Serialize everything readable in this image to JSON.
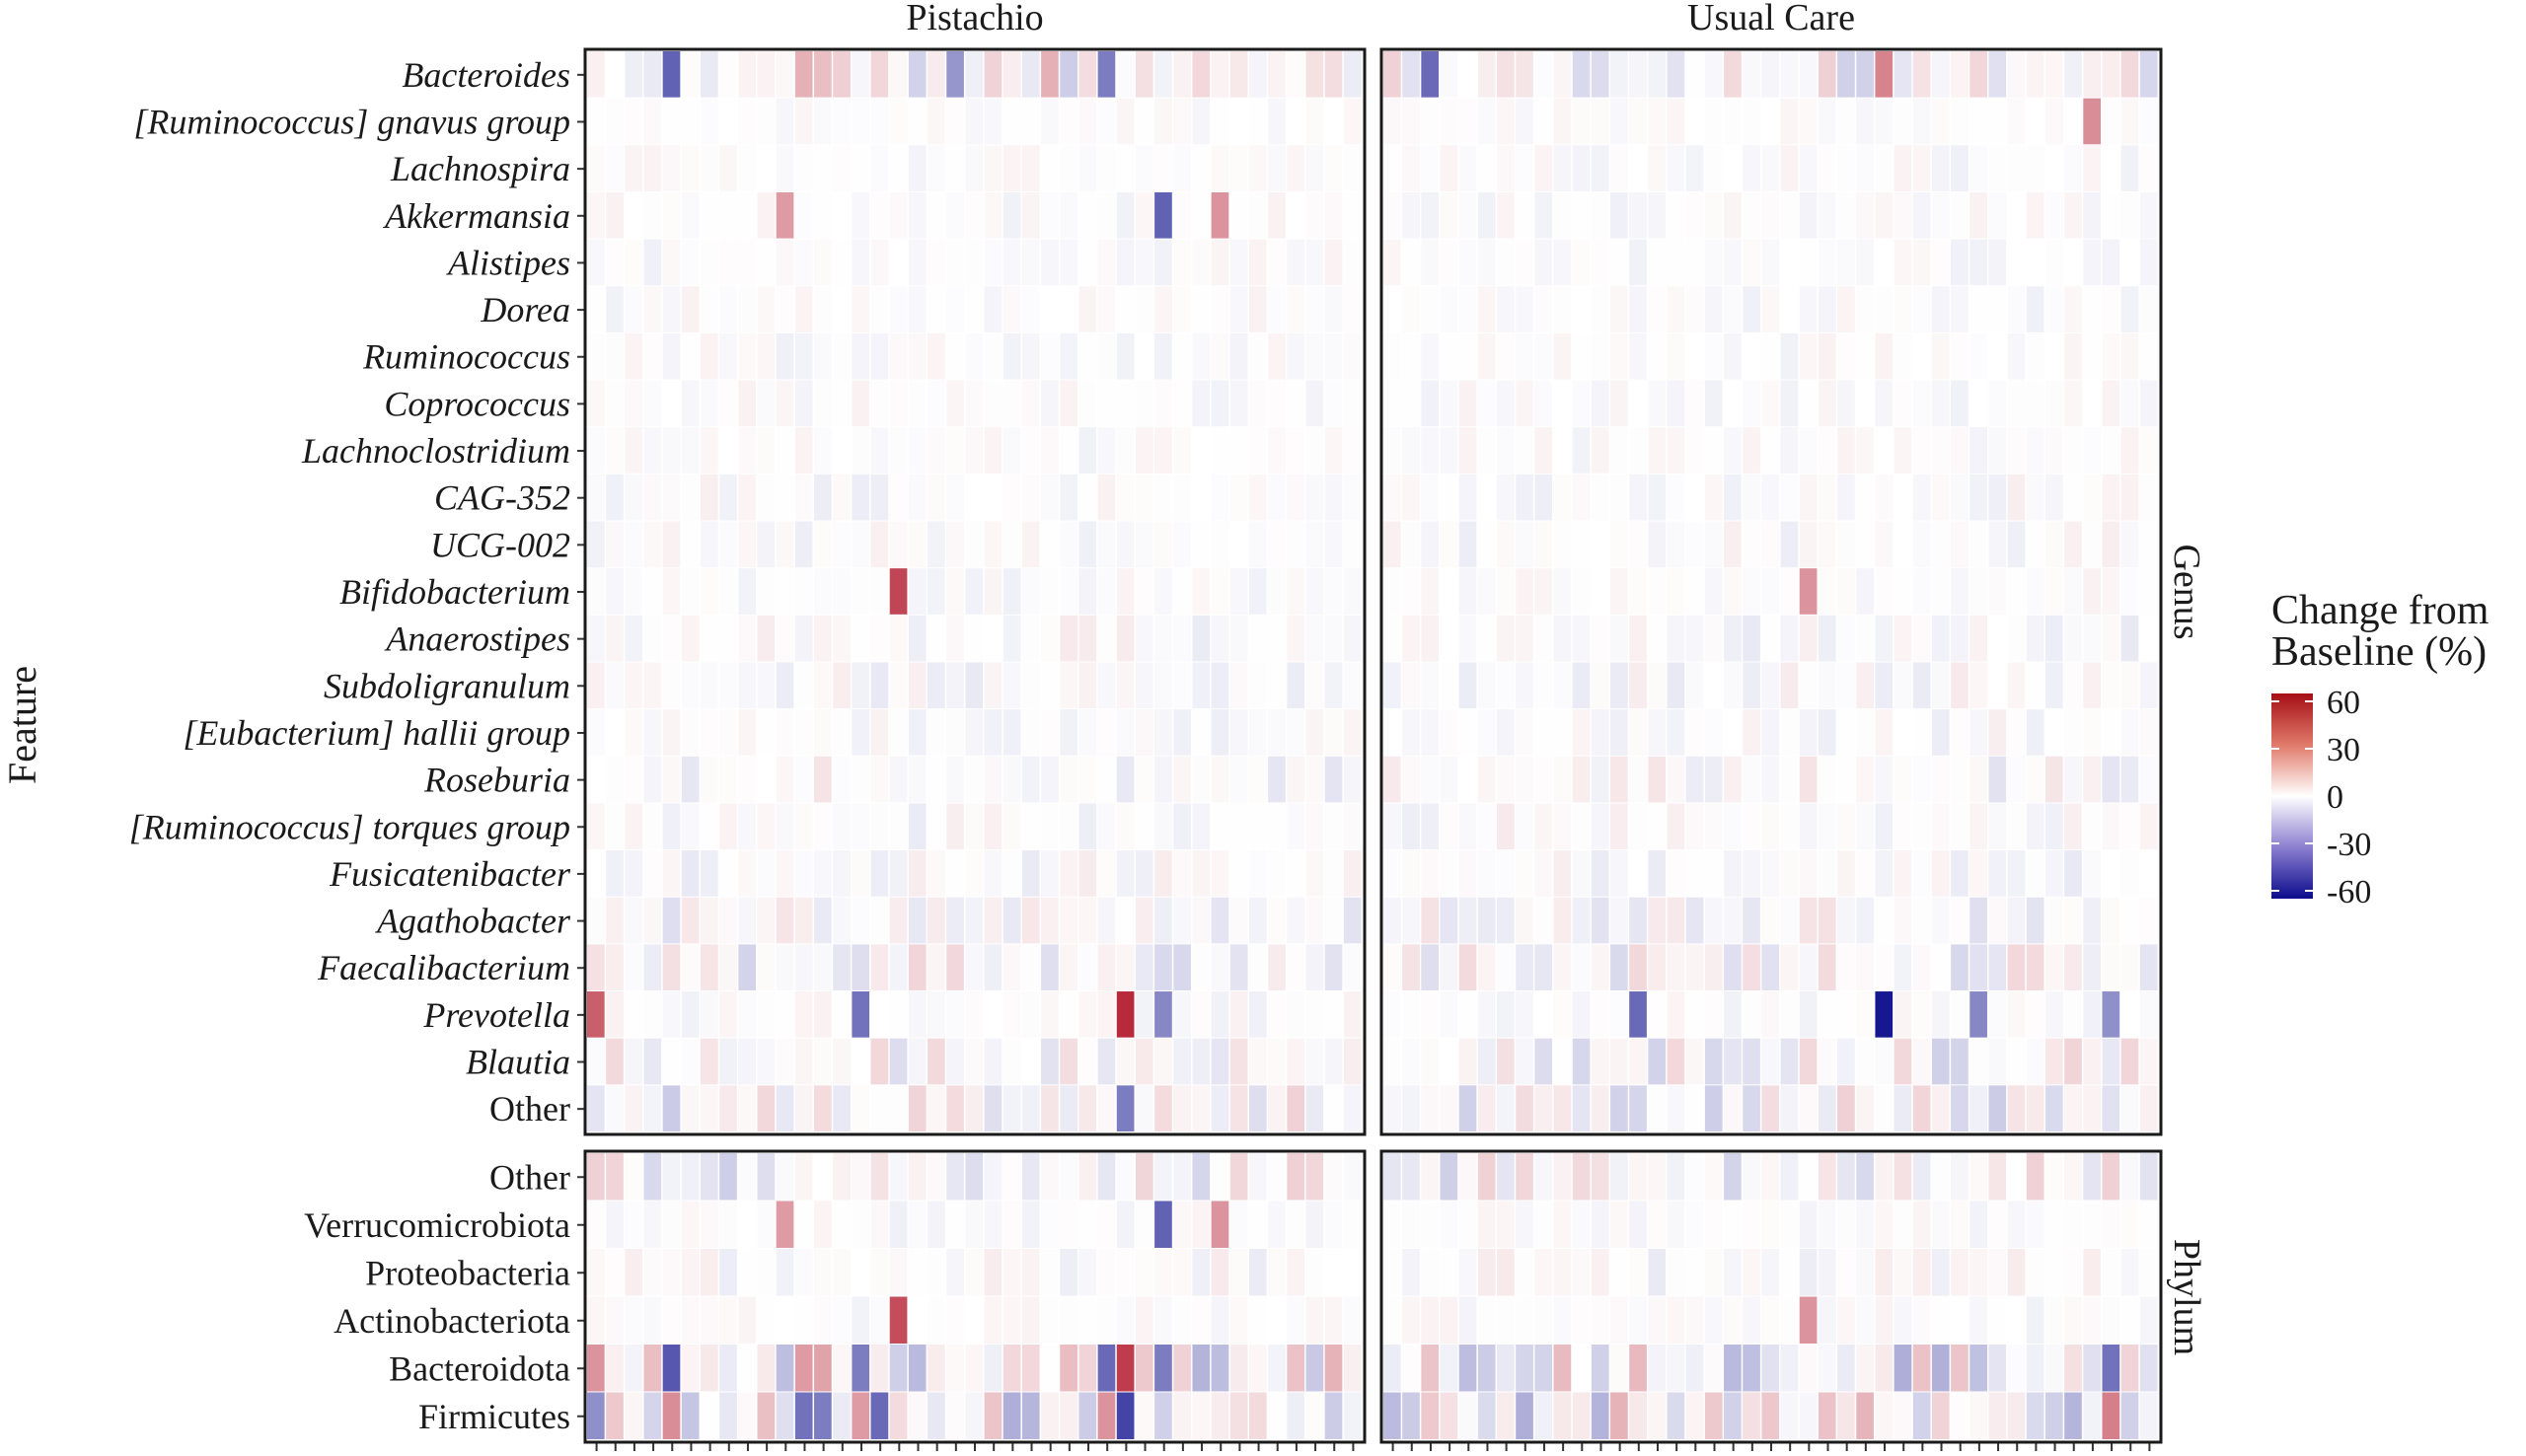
{
  "chart_data": {
    "type": "heatmap",
    "facets": [
      "Pistachio",
      "Usual Care"
    ],
    "row_groups": [
      {
        "name": "Genus",
        "rows": [
          "Bacteroides",
          "[Ruminococcus] gnavus group",
          "Lachnospira",
          "Akkermansia",
          "Alistipes",
          "Dorea",
          "Ruminococcus",
          "Coprococcus",
          "Lachnoclostridium",
          "CAG-352",
          "UCG-002",
          "Bifidobacterium",
          "Anaerostipes",
          "Subdoligranulum",
          "[Eubacterium] hallii group",
          "Roseburia",
          "[Ruminococcus] torques group",
          "Fusicatenibacter",
          "Agathobacter",
          "Faecalibacterium",
          "Prevotella",
          "Blautia",
          "Other"
        ]
      },
      {
        "name": "Phylum",
        "rows": [
          "Other",
          "Verrucomicrobiota",
          "Proteobacteria",
          "Actinobacteriota",
          "Bacteroidota",
          "Firmicutes"
        ]
      }
    ],
    "columns_per_facet": {
      "Pistachio": 41,
      "Usual Care": 41
    },
    "highlights": [
      {
        "facet": "Pistachio",
        "row": "Prevotella",
        "column": 1,
        "value": 45
      },
      {
        "facet": "Pistachio",
        "row": "Prevotella",
        "column": 29,
        "value": 60
      },
      {
        "facet": "Pistachio",
        "row": "Prevotella",
        "column": 15,
        "value": -38
      },
      {
        "facet": "Pistachio",
        "row": "Prevotella",
        "column": 31,
        "value": -32
      },
      {
        "facet": "Pistachio",
        "row": "Bifidobacterium",
        "column": 17,
        "value": 52
      },
      {
        "facet": "Pistachio",
        "row": "Actinobacteriota",
        "column": 17,
        "value": 50
      },
      {
        "facet": "Pistachio",
        "row": "Akkermansia",
        "column": 11,
        "value": 28
      },
      {
        "facet": "Pistachio",
        "row": "Akkermansia",
        "column": 31,
        "value": -42
      },
      {
        "facet": "Pistachio",
        "row": "Akkermansia",
        "column": 34,
        "value": 30
      },
      {
        "facet": "Pistachio",
        "row": "Verrucomicrobiota",
        "column": 11,
        "value": 28
      },
      {
        "facet": "Pistachio",
        "row": "Verrucomicrobiota",
        "column": 31,
        "value": -42
      },
      {
        "facet": "Pistachio",
        "row": "Verrucomicrobiota",
        "column": 34,
        "value": 30
      },
      {
        "facet": "Pistachio",
        "row": "Bacteroides",
        "column": 5,
        "value": -42
      },
      {
        "facet": "Pistachio",
        "row": "Bacteroides",
        "column": 12,
        "value": 22
      },
      {
        "facet": "Pistachio",
        "row": "Bacteroides",
        "column": 13,
        "value": 18
      },
      {
        "facet": "Pistachio",
        "row": "Bacteroides",
        "column": 20,
        "value": -28
      },
      {
        "facet": "Pistachio",
        "row": "Bacteroides",
        "column": 25,
        "value": 22
      },
      {
        "facet": "Pistachio",
        "row": "Bacteroides",
        "column": 28,
        "value": -35
      },
      {
        "facet": "Pistachio",
        "row": "Bacteroidota",
        "column": 1,
        "value": 30
      },
      {
        "facet": "Pistachio",
        "row": "Bacteroidota",
        "column": 5,
        "value": -45
      },
      {
        "facet": "Pistachio",
        "row": "Bacteroidota",
        "column": 12,
        "value": 28
      },
      {
        "facet": "Pistachio",
        "row": "Bacteroidota",
        "column": 13,
        "value": 26
      },
      {
        "facet": "Pistachio",
        "row": "Bacteroidota",
        "column": 15,
        "value": -35
      },
      {
        "facet": "Pistachio",
        "row": "Bacteroidota",
        "column": 28,
        "value": -40
      },
      {
        "facet": "Pistachio",
        "row": "Bacteroidota",
        "column": 29,
        "value": 55
      },
      {
        "facet": "Pistachio",
        "row": "Bacteroidota",
        "column": 31,
        "value": -35
      },
      {
        "facet": "Pistachio",
        "row": "Firmicutes",
        "column": 1,
        "value": -30
      },
      {
        "facet": "Pistachio",
        "row": "Firmicutes",
        "column": 5,
        "value": 32
      },
      {
        "facet": "Pistachio",
        "row": "Firmicutes",
        "column": 12,
        "value": -38
      },
      {
        "facet": "Pistachio",
        "row": "Firmicutes",
        "column": 13,
        "value": -35
      },
      {
        "facet": "Pistachio",
        "row": "Firmicutes",
        "column": 15,
        "value": 28
      },
      {
        "facet": "Pistachio",
        "row": "Firmicutes",
        "column": 16,
        "value": -40
      },
      {
        "facet": "Pistachio",
        "row": "Firmicutes",
        "column": 28,
        "value": 30
      },
      {
        "facet": "Pistachio",
        "row": "Firmicutes",
        "column": 29,
        "value": -50
      },
      {
        "facet": "Pistachio",
        "row": "Other",
        "group": "Genus",
        "column": 29,
        "value": -35
      },
      {
        "facet": "Usual Care",
        "row": "Prevotella",
        "column": 14,
        "value": -40
      },
      {
        "facet": "Usual Care",
        "row": "Prevotella",
        "column": 27,
        "value": -62
      },
      {
        "facet": "Usual Care",
        "row": "Prevotella",
        "column": 32,
        "value": -32
      },
      {
        "facet": "Usual Care",
        "row": "Prevotella",
        "column": 39,
        "value": -30
      },
      {
        "facet": "Usual Care",
        "row": "Bacteroides",
        "column": 3,
        "value": -40
      },
      {
        "facet": "Usual Care",
        "row": "Bacteroides",
        "column": 27,
        "value": 35
      },
      {
        "facet": "Usual Care",
        "row": "[Ruminococcus] gnavus group",
        "column": 38,
        "value": 32
      },
      {
        "facet": "Usual Care",
        "row": "Bifidobacterium",
        "column": 23,
        "value": 30
      },
      {
        "facet": "Usual Care",
        "row": "Actinobacteriota",
        "column": 23,
        "value": 30
      },
      {
        "facet": "Usual Care",
        "row": "Bacteroidota",
        "column": 39,
        "value": -38
      },
      {
        "facet": "Usual Care",
        "row": "Firmicutes",
        "column": 39,
        "value": 36
      }
    ],
    "color_scale": {
      "title": "Change from Baseline (%)",
      "title_lines": [
        "Change from",
        "Baseline (%)"
      ],
      "ticks": [
        {
          "label": "60",
          "value": 60
        },
        {
          "label": "30",
          "value": 30
        },
        {
          "label": "0",
          "value": 0
        },
        {
          "label": "-30",
          "value": -30
        },
        {
          "label": "-60",
          "value": -60
        }
      ],
      "range": [
        -65,
        65
      ],
      "low_color": "#0c0c8c",
      "mid_color": "#ffffff",
      "high_color": "#b2182b"
    },
    "ylabel": "Feature",
    "xlabel": ""
  }
}
